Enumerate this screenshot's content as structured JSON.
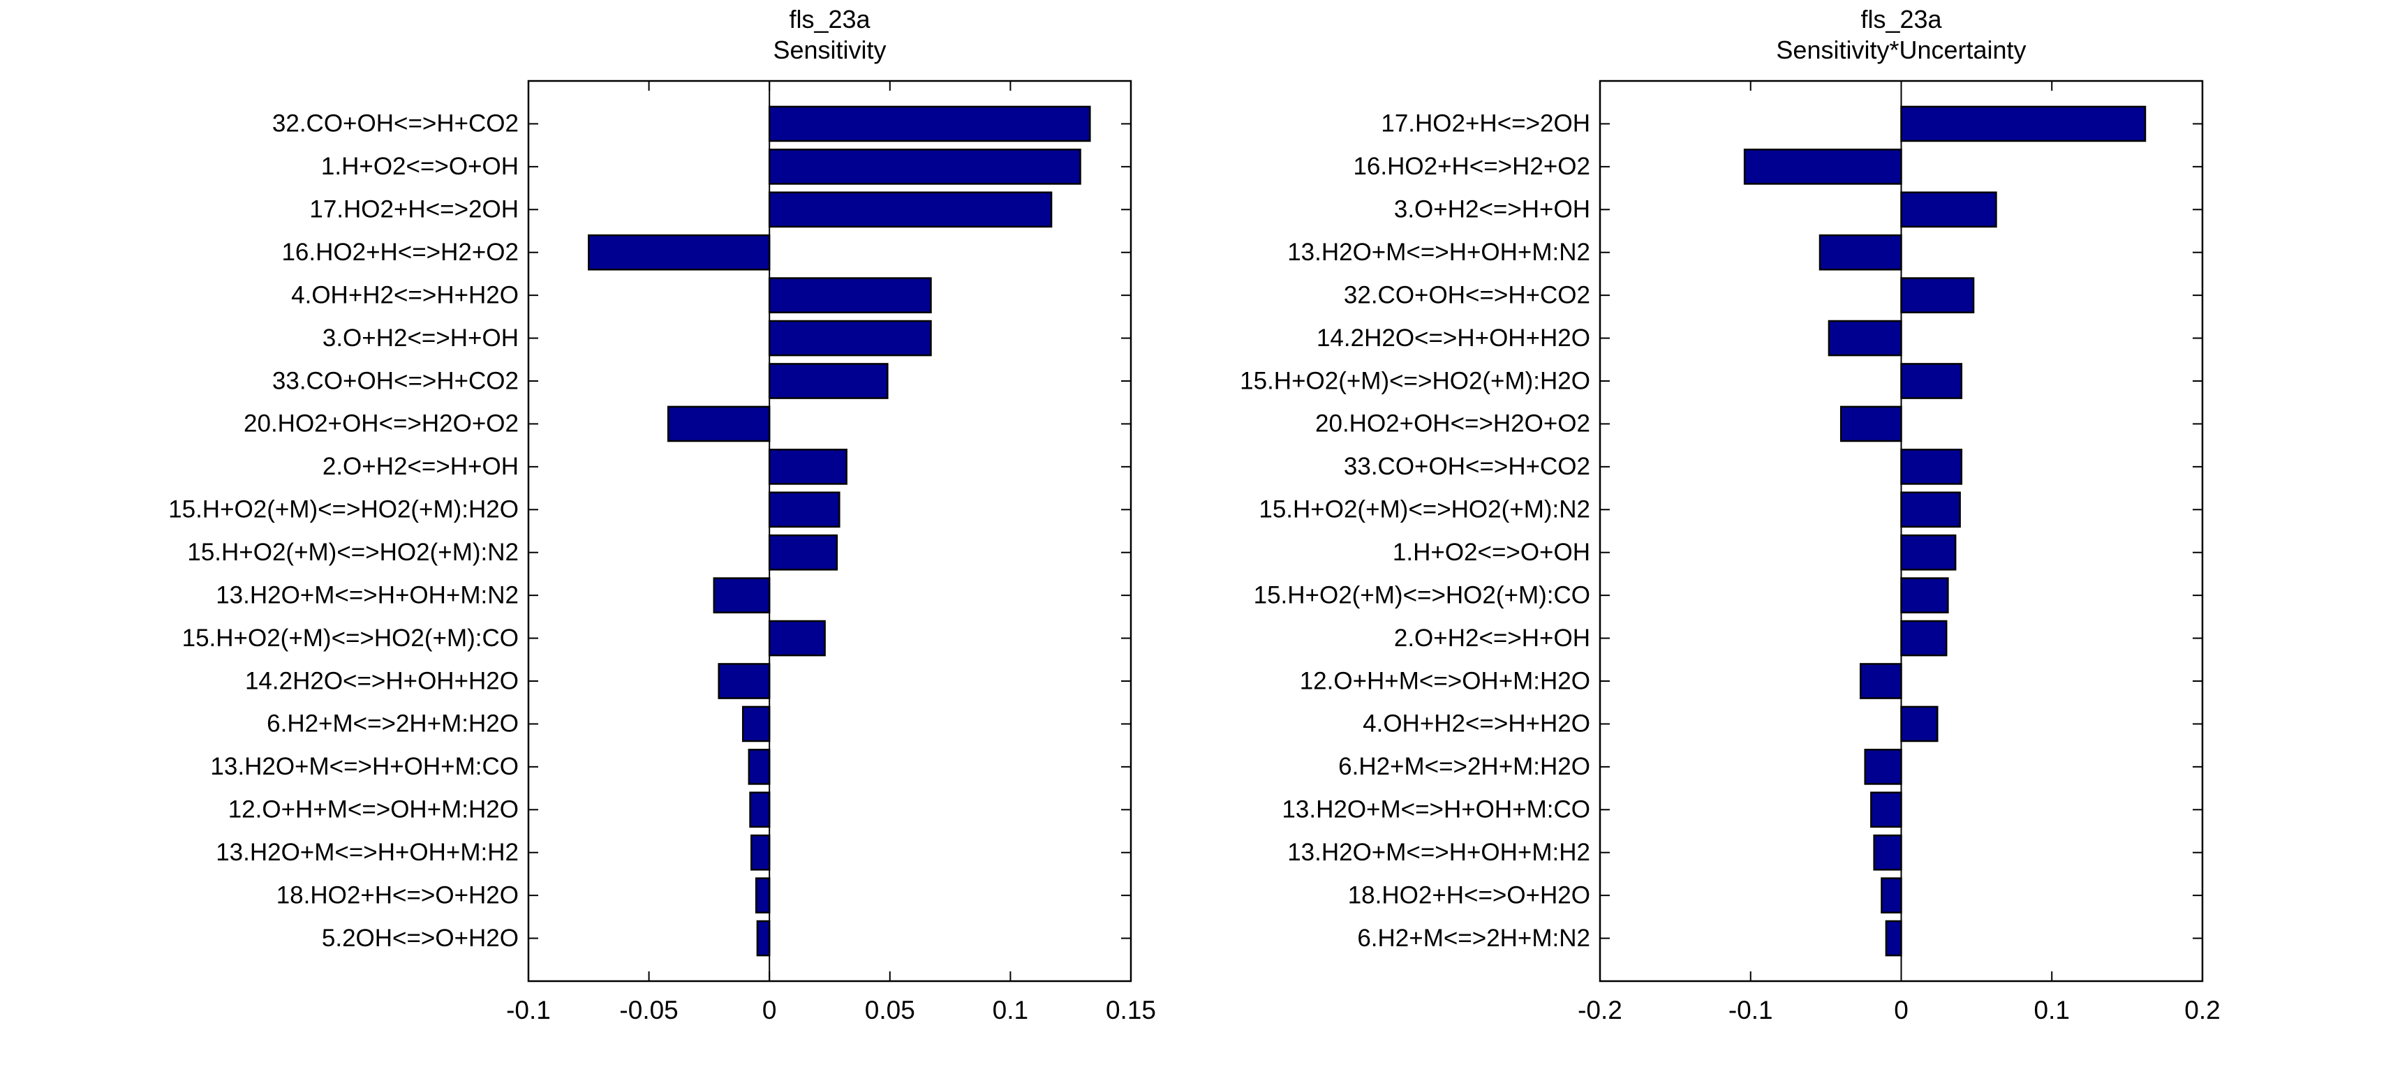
{
  "chart_data": [
    {
      "type": "bar",
      "orientation": "horizontal",
      "title": [
        "fls_23a",
        "Sensitivity"
      ],
      "xlabel": "",
      "ylabel": "",
      "xlim": [
        -0.1,
        0.15
      ],
      "xticks": [
        -0.1,
        -0.05,
        0,
        0.05,
        0.1,
        0.15
      ],
      "xtick_labels": [
        "-0.1",
        "-0.05",
        "0",
        "0.05",
        "0.1",
        "0.15"
      ],
      "grid": false,
      "bar_color": "#000090",
      "categories": [
        "32.CO+OH<=>H+CO2",
        "1.H+O2<=>O+OH",
        "17.HO2+H<=>2OH",
        "16.HO2+H<=>H2+O2",
        "4.OH+H2<=>H+H2O",
        "3.O+H2<=>H+OH",
        "33.CO+OH<=>H+CO2",
        "20.HO2+OH<=>H2O+O2",
        "2.O+H2<=>H+OH",
        "15.H+O2(+M)<=>HO2(+M):H2O",
        "15.H+O2(+M)<=>HO2(+M):N2",
        "13.H2O+M<=>H+OH+M:N2",
        "15.H+O2(+M)<=>HO2(+M):CO",
        "14.2H2O<=>H+OH+H2O",
        "6.H2+M<=>2H+M:H2O",
        "13.H2O+M<=>H+OH+M:CO",
        "12.O+H+M<=>OH+M:H2O",
        "13.H2O+M<=>H+OH+M:H2",
        "18.HO2+H<=>O+H2O",
        "5.2OH<=>O+H2O"
      ],
      "values": [
        0.133,
        0.129,
        0.117,
        -0.075,
        0.067,
        0.067,
        0.049,
        -0.042,
        0.032,
        0.029,
        0.028,
        -0.023,
        0.023,
        -0.021,
        -0.011,
        -0.0085,
        -0.008,
        -0.0075,
        -0.0055,
        -0.005
      ]
    },
    {
      "type": "bar",
      "orientation": "horizontal",
      "title": [
        "fls_23a",
        "Sensitivity*Uncertainty"
      ],
      "xlabel": "",
      "ylabel": "",
      "xlim": [
        -0.2,
        0.2
      ],
      "xticks": [
        -0.2,
        -0.1,
        0,
        0.1,
        0.2
      ],
      "xtick_labels": [
        "-0.2",
        "-0.1",
        "0",
        "0.1",
        "0.2"
      ],
      "grid": false,
      "bar_color": "#000090",
      "categories": [
        "17.HO2+H<=>2OH",
        "16.HO2+H<=>H2+O2",
        "3.O+H2<=>H+OH",
        "13.H2O+M<=>H+OH+M:N2",
        "32.CO+OH<=>H+CO2",
        "14.2H2O<=>H+OH+H2O",
        "15.H+O2(+M)<=>HO2(+M):H2O",
        "20.HO2+OH<=>H2O+O2",
        "33.CO+OH<=>H+CO2",
        "15.H+O2(+M)<=>HO2(+M):N2",
        "1.H+O2<=>O+OH",
        "15.H+O2(+M)<=>HO2(+M):CO",
        "2.O+H2<=>H+OH",
        "12.O+H+M<=>OH+M:H2O",
        "4.OH+H2<=>H+H2O",
        "6.H2+M<=>2H+M:H2O",
        "13.H2O+M<=>H+OH+M:CO",
        "13.H2O+M<=>H+OH+M:H2",
        "18.HO2+H<=>O+H2O",
        "6.H2+M<=>2H+M:N2"
      ],
      "values": [
        0.162,
        -0.104,
        0.063,
        -0.054,
        0.048,
        -0.048,
        0.04,
        -0.04,
        0.04,
        0.039,
        0.036,
        0.031,
        0.03,
        -0.027,
        0.024,
        -0.024,
        -0.02,
        -0.018,
        -0.013,
        -0.01
      ]
    }
  ]
}
